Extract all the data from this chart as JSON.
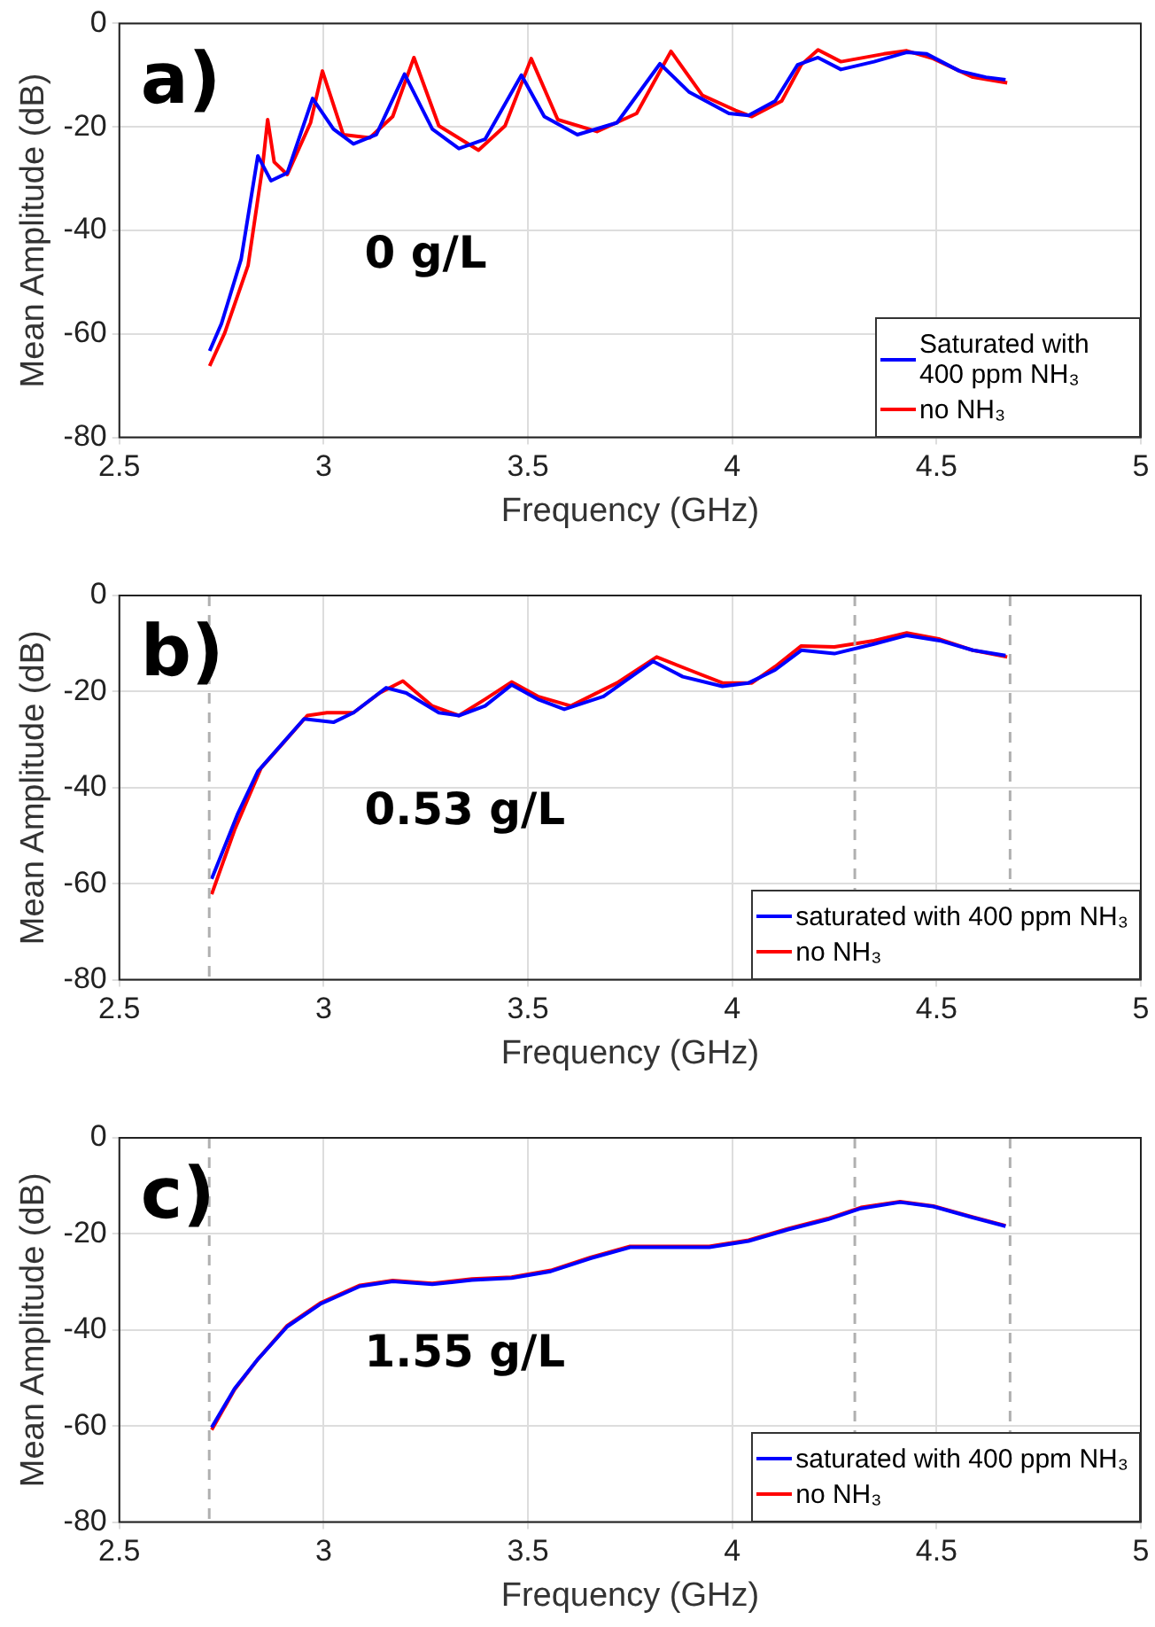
{
  "chart_data": [
    {
      "type": "line",
      "title": "a)",
      "xlabel": "Frequency (GHz)",
      "ylabel": "Mean Amplitude (dB)",
      "annotations": [
        "0 g/L"
      ],
      "xlim": [
        2.5,
        5
      ],
      "xticks": [
        2.5,
        3,
        3.5,
        4,
        4.5,
        5
      ],
      "ylim": [
        -80,
        0
      ],
      "yticks": [
        -80,
        -60,
        -40,
        -20,
        0
      ],
      "grid": true,
      "legend": "bottom right",
      "marker": "none",
      "line_style": "solid",
      "series": [
        {
          "name": "Saturated with 400 ppm NH₃",
          "color": "#0000ff",
          "x": [
            2.721,
            2.75,
            2.798,
            2.839,
            2.871,
            2.911,
            2.973,
            3.024,
            3.073,
            3.129,
            3.198,
            3.266,
            3.331,
            3.395,
            3.484,
            3.54,
            3.621,
            3.718,
            3.823,
            3.895,
            3.992,
            4.04,
            4.105,
            4.16,
            4.21,
            4.266,
            4.347,
            4.427,
            4.476,
            4.556,
            4.621,
            4.669
          ],
          "values": [
            -63.3,
            -58,
            -45.6,
            -25.6,
            -30.4,
            -28.9,
            -14.5,
            -20.4,
            -23.3,
            -21.5,
            -9.8,
            -20.4,
            -24.2,
            -22.4,
            -10,
            -18,
            -21.5,
            -19.2,
            -7.8,
            -13.3,
            -17.4,
            -17.8,
            -15,
            -8,
            -6.6,
            -8.9,
            -7.4,
            -5.6,
            -5.9,
            -9.2,
            -10.4,
            -10.9
          ]
        },
        {
          "name": "no NH₃",
          "color": "#ff0000",
          "x": [
            2.721,
            2.758,
            2.815,
            2.85,
            2.863,
            2.879,
            2.911,
            2.968,
            2.997,
            3.048,
            3.113,
            3.169,
            3.221,
            3.282,
            3.379,
            3.444,
            3.508,
            3.573,
            3.669,
            3.766,
            3.85,
            3.927,
            4.008,
            4.048,
            4.121,
            4.169,
            4.21,
            4.266,
            4.371,
            4.427,
            4.492,
            4.589,
            4.673
          ],
          "values": [
            -66.2,
            -59.8,
            -46.8,
            -28,
            -18.6,
            -26.8,
            -29.2,
            -19.2,
            -9.2,
            -21.5,
            -22.1,
            -18,
            -6.6,
            -19.8,
            -24.5,
            -19.8,
            -6.8,
            -18.6,
            -20.9,
            -17.4,
            -5.4,
            -13.9,
            -16.8,
            -18,
            -15,
            -8,
            -5.1,
            -7.4,
            -5.9,
            -5.3,
            -6.8,
            -10.4,
            -11.5
          ]
        }
      ]
    },
    {
      "type": "line",
      "title": "b)",
      "xlabel": "Frequency (GHz)",
      "ylabel": "Mean Amplitude (dB)",
      "annotations": [
        "0.53 g/L"
      ],
      "xlim": [
        2.5,
        5
      ],
      "xticks": [
        2.5,
        3,
        3.5,
        4,
        4.5,
        5
      ],
      "ylim": [
        -80,
        0
      ],
      "yticks": [
        -80,
        -60,
        -40,
        -20,
        0
      ],
      "grid": true,
      "legend": "bottom right",
      "marker": "none",
      "line_style": "solid",
      "ref_lines": [
        {
          "axis": "x",
          "value": 2.72,
          "color": "#b0b0b0",
          "line_style": "dashed"
        },
        {
          "axis": "x",
          "value": 4.3,
          "color": "#b0b0b0",
          "line_style": "dashed"
        },
        {
          "axis": "x",
          "value": 4.68,
          "color": "#b0b0b0",
          "line_style": "dashed"
        }
      ],
      "series": [
        {
          "name": "saturated with 400 ppm NH₃",
          "color": "#0000ff",
          "x": [
            2.726,
            2.79,
            2.839,
            2.895,
            2.952,
            3.024,
            3.073,
            3.153,
            3.202,
            3.282,
            3.331,
            3.395,
            3.46,
            3.524,
            3.589,
            3.685,
            3.806,
            3.879,
            3.976,
            4.04,
            4.105,
            4.169,
            4.25,
            4.347,
            4.427,
            4.508,
            4.589,
            4.669
          ],
          "values": [
            -59,
            -45.4,
            -36.6,
            -31.2,
            -25.7,
            -26.4,
            -24.4,
            -19.2,
            -20.3,
            -24.4,
            -25,
            -23,
            -18.6,
            -21.6,
            -23.7,
            -21,
            -13.7,
            -16.9,
            -18.9,
            -18.2,
            -15.5,
            -11.4,
            -12.1,
            -10.1,
            -8.3,
            -9.4,
            -11.4,
            -12.5
          ]
        },
        {
          "name": "no NH₃",
          "color": "#ff0000",
          "x": [
            2.726,
            2.782,
            2.847,
            2.903,
            2.96,
            3.008,
            3.073,
            3.137,
            3.194,
            3.266,
            3.331,
            3.395,
            3.46,
            3.524,
            3.605,
            3.718,
            3.815,
            3.895,
            3.976,
            4.048,
            4.105,
            4.169,
            4.25,
            4.347,
            4.427,
            4.508,
            4.589,
            4.673
          ],
          "values": [
            -62.2,
            -48.8,
            -35.9,
            -30.5,
            -25,
            -24.4,
            -24.4,
            -20.3,
            -17.8,
            -23,
            -25,
            -21.6,
            -18,
            -21,
            -23,
            -18.2,
            -12.8,
            -15.5,
            -18.2,
            -18.2,
            -14.8,
            -10.5,
            -10.7,
            -9.4,
            -7.8,
            -9.1,
            -11.4,
            -12.8
          ]
        }
      ]
    },
    {
      "type": "line",
      "title": "c)",
      "xlabel": "Frequency (GHz)",
      "ylabel": "Mean Amplitude (dB)",
      "annotations": [
        "1.55 g/L"
      ],
      "xlim": [
        2.5,
        5
      ],
      "xticks": [
        2.5,
        3,
        3.5,
        4,
        4.5,
        5
      ],
      "ylim": [
        -80,
        0
      ],
      "yticks": [
        -80,
        -60,
        -40,
        -20,
        0
      ],
      "grid": true,
      "legend": "bottom right",
      "marker": "none",
      "line_style": "solid",
      "ref_lines": [
        {
          "axis": "x",
          "value": 2.72,
          "color": "#b0b0b0",
          "line_style": "dashed"
        },
        {
          "axis": "x",
          "value": 4.3,
          "color": "#b0b0b0",
          "line_style": "dashed"
        },
        {
          "axis": "x",
          "value": 4.68,
          "color": "#b0b0b0",
          "line_style": "dashed"
        }
      ],
      "series": [
        {
          "name": "saturated with 400 ppm NH₃",
          "color": "#0000ff",
          "x": [
            2.726,
            2.782,
            2.839,
            2.911,
            2.992,
            3.089,
            3.169,
            3.266,
            3.363,
            3.46,
            3.556,
            3.653,
            3.75,
            3.847,
            3.944,
            4.04,
            4.137,
            4.234,
            4.315,
            4.411,
            4.492,
            4.589,
            4.669
          ],
          "values": [
            -60.3,
            -52.2,
            -46.1,
            -39.3,
            -34.6,
            -30.9,
            -29.9,
            -30.5,
            -29.6,
            -29.2,
            -27.8,
            -25.1,
            -22.8,
            -22.8,
            -22.8,
            -21.5,
            -19.1,
            -17,
            -14.7,
            -13.4,
            -14.3,
            -16.6,
            -18.4
          ]
        },
        {
          "name": "no NH₃",
          "color": "#ff0000",
          "x": [
            2.726,
            2.782,
            2.839,
            2.911,
            2.992,
            3.089,
            3.169,
            3.266,
            3.363,
            3.46,
            3.556,
            3.653,
            3.75,
            3.847,
            3.944,
            4.04,
            4.137,
            4.234,
            4.315,
            4.411,
            4.492,
            4.589,
            4.669
          ],
          "values": [
            -60.8,
            -52.4,
            -46.1,
            -39.1,
            -34.4,
            -30.7,
            -29.7,
            -30.3,
            -29.4,
            -29,
            -27.6,
            -24.9,
            -22.6,
            -22.6,
            -22.6,
            -21.3,
            -18.9,
            -16.8,
            -14.5,
            -13.3,
            -14.2,
            -16.5,
            -18.3
          ]
        }
      ]
    }
  ]
}
